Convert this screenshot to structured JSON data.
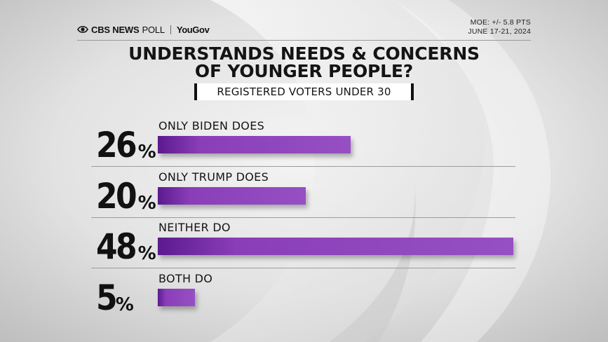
{
  "header": {
    "brand_cbs": "CBS NEWS",
    "brand_poll": "POLL",
    "brand_partner": "YouGov",
    "moe": "MOE: +/- 5.8 PTS",
    "dates": "JUNE 17-21, 2024"
  },
  "colors": {
    "bar": "#9650c3",
    "bar_dark": "#5c1a8f",
    "text": "#141414"
  },
  "chart_data": {
    "type": "bar",
    "orientation": "horizontal",
    "title_line1": "UNDERSTANDS NEEDS & CONCERNS",
    "title_line2": "OF YOUNGER PEOPLE?",
    "subtitle": "REGISTERED VOTERS UNDER 30",
    "categories": [
      "ONLY BIDEN DOES",
      "ONLY TRUMP DOES",
      "NEITHER DO",
      "BOTH DO"
    ],
    "values": [
      26,
      20,
      48,
      5
    ],
    "value_labels": [
      "26",
      "20",
      "48",
      "5"
    ],
    "unit": "%",
    "xlim": [
      0,
      48
    ]
  }
}
